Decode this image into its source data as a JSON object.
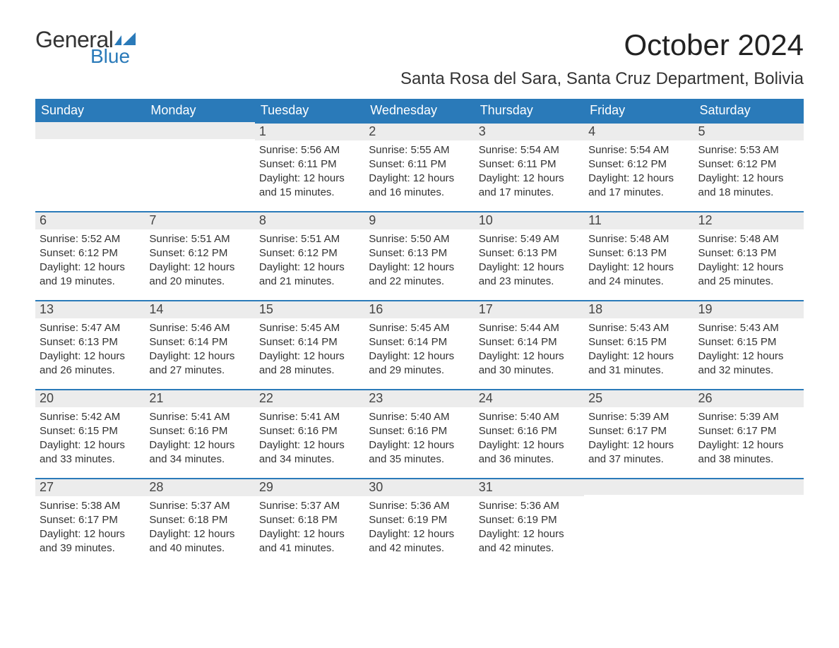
{
  "logo": {
    "text1": "General",
    "text2": "Blue",
    "flag_color": "#2a7ab9"
  },
  "title": "October 2024",
  "subtitle": "Santa Rosa del Sara, Santa Cruz Department, Bolivia",
  "colors": {
    "header_bg": "#2a7ab9",
    "header_text": "#ffffff",
    "daynum_bg": "#ececec",
    "daynum_border": "#2a7ab9",
    "body_text": "#333333",
    "page_bg": "#ffffff"
  },
  "typography": {
    "title_fontsize": 42,
    "subtitle_fontsize": 24,
    "header_fontsize": 18,
    "daynum_fontsize": 18,
    "body_fontsize": 15
  },
  "weekdays": [
    "Sunday",
    "Monday",
    "Tuesday",
    "Wednesday",
    "Thursday",
    "Friday",
    "Saturday"
  ],
  "weeks": [
    [
      {
        "day": "",
        "sunrise": "",
        "sunset": "",
        "daylight1": "",
        "daylight2": ""
      },
      {
        "day": "",
        "sunrise": "",
        "sunset": "",
        "daylight1": "",
        "daylight2": ""
      },
      {
        "day": "1",
        "sunrise": "Sunrise: 5:56 AM",
        "sunset": "Sunset: 6:11 PM",
        "daylight1": "Daylight: 12 hours",
        "daylight2": "and 15 minutes."
      },
      {
        "day": "2",
        "sunrise": "Sunrise: 5:55 AM",
        "sunset": "Sunset: 6:11 PM",
        "daylight1": "Daylight: 12 hours",
        "daylight2": "and 16 minutes."
      },
      {
        "day": "3",
        "sunrise": "Sunrise: 5:54 AM",
        "sunset": "Sunset: 6:11 PM",
        "daylight1": "Daylight: 12 hours",
        "daylight2": "and 17 minutes."
      },
      {
        "day": "4",
        "sunrise": "Sunrise: 5:54 AM",
        "sunset": "Sunset: 6:12 PM",
        "daylight1": "Daylight: 12 hours",
        "daylight2": "and 17 minutes."
      },
      {
        "day": "5",
        "sunrise": "Sunrise: 5:53 AM",
        "sunset": "Sunset: 6:12 PM",
        "daylight1": "Daylight: 12 hours",
        "daylight2": "and 18 minutes."
      }
    ],
    [
      {
        "day": "6",
        "sunrise": "Sunrise: 5:52 AM",
        "sunset": "Sunset: 6:12 PM",
        "daylight1": "Daylight: 12 hours",
        "daylight2": "and 19 minutes."
      },
      {
        "day": "7",
        "sunrise": "Sunrise: 5:51 AM",
        "sunset": "Sunset: 6:12 PM",
        "daylight1": "Daylight: 12 hours",
        "daylight2": "and 20 minutes."
      },
      {
        "day": "8",
        "sunrise": "Sunrise: 5:51 AM",
        "sunset": "Sunset: 6:12 PM",
        "daylight1": "Daylight: 12 hours",
        "daylight2": "and 21 minutes."
      },
      {
        "day": "9",
        "sunrise": "Sunrise: 5:50 AM",
        "sunset": "Sunset: 6:13 PM",
        "daylight1": "Daylight: 12 hours",
        "daylight2": "and 22 minutes."
      },
      {
        "day": "10",
        "sunrise": "Sunrise: 5:49 AM",
        "sunset": "Sunset: 6:13 PM",
        "daylight1": "Daylight: 12 hours",
        "daylight2": "and 23 minutes."
      },
      {
        "day": "11",
        "sunrise": "Sunrise: 5:48 AM",
        "sunset": "Sunset: 6:13 PM",
        "daylight1": "Daylight: 12 hours",
        "daylight2": "and 24 minutes."
      },
      {
        "day": "12",
        "sunrise": "Sunrise: 5:48 AM",
        "sunset": "Sunset: 6:13 PM",
        "daylight1": "Daylight: 12 hours",
        "daylight2": "and 25 minutes."
      }
    ],
    [
      {
        "day": "13",
        "sunrise": "Sunrise: 5:47 AM",
        "sunset": "Sunset: 6:13 PM",
        "daylight1": "Daylight: 12 hours",
        "daylight2": "and 26 minutes."
      },
      {
        "day": "14",
        "sunrise": "Sunrise: 5:46 AM",
        "sunset": "Sunset: 6:14 PM",
        "daylight1": "Daylight: 12 hours",
        "daylight2": "and 27 minutes."
      },
      {
        "day": "15",
        "sunrise": "Sunrise: 5:45 AM",
        "sunset": "Sunset: 6:14 PM",
        "daylight1": "Daylight: 12 hours",
        "daylight2": "and 28 minutes."
      },
      {
        "day": "16",
        "sunrise": "Sunrise: 5:45 AM",
        "sunset": "Sunset: 6:14 PM",
        "daylight1": "Daylight: 12 hours",
        "daylight2": "and 29 minutes."
      },
      {
        "day": "17",
        "sunrise": "Sunrise: 5:44 AM",
        "sunset": "Sunset: 6:14 PM",
        "daylight1": "Daylight: 12 hours",
        "daylight2": "and 30 minutes."
      },
      {
        "day": "18",
        "sunrise": "Sunrise: 5:43 AM",
        "sunset": "Sunset: 6:15 PM",
        "daylight1": "Daylight: 12 hours",
        "daylight2": "and 31 minutes."
      },
      {
        "day": "19",
        "sunrise": "Sunrise: 5:43 AM",
        "sunset": "Sunset: 6:15 PM",
        "daylight1": "Daylight: 12 hours",
        "daylight2": "and 32 minutes."
      }
    ],
    [
      {
        "day": "20",
        "sunrise": "Sunrise: 5:42 AM",
        "sunset": "Sunset: 6:15 PM",
        "daylight1": "Daylight: 12 hours",
        "daylight2": "and 33 minutes."
      },
      {
        "day": "21",
        "sunrise": "Sunrise: 5:41 AM",
        "sunset": "Sunset: 6:16 PM",
        "daylight1": "Daylight: 12 hours",
        "daylight2": "and 34 minutes."
      },
      {
        "day": "22",
        "sunrise": "Sunrise: 5:41 AM",
        "sunset": "Sunset: 6:16 PM",
        "daylight1": "Daylight: 12 hours",
        "daylight2": "and 34 minutes."
      },
      {
        "day": "23",
        "sunrise": "Sunrise: 5:40 AM",
        "sunset": "Sunset: 6:16 PM",
        "daylight1": "Daylight: 12 hours",
        "daylight2": "and 35 minutes."
      },
      {
        "day": "24",
        "sunrise": "Sunrise: 5:40 AM",
        "sunset": "Sunset: 6:16 PM",
        "daylight1": "Daylight: 12 hours",
        "daylight2": "and 36 minutes."
      },
      {
        "day": "25",
        "sunrise": "Sunrise: 5:39 AM",
        "sunset": "Sunset: 6:17 PM",
        "daylight1": "Daylight: 12 hours",
        "daylight2": "and 37 minutes."
      },
      {
        "day": "26",
        "sunrise": "Sunrise: 5:39 AM",
        "sunset": "Sunset: 6:17 PM",
        "daylight1": "Daylight: 12 hours",
        "daylight2": "and 38 minutes."
      }
    ],
    [
      {
        "day": "27",
        "sunrise": "Sunrise: 5:38 AM",
        "sunset": "Sunset: 6:17 PM",
        "daylight1": "Daylight: 12 hours",
        "daylight2": "and 39 minutes."
      },
      {
        "day": "28",
        "sunrise": "Sunrise: 5:37 AM",
        "sunset": "Sunset: 6:18 PM",
        "daylight1": "Daylight: 12 hours",
        "daylight2": "and 40 minutes."
      },
      {
        "day": "29",
        "sunrise": "Sunrise: 5:37 AM",
        "sunset": "Sunset: 6:18 PM",
        "daylight1": "Daylight: 12 hours",
        "daylight2": "and 41 minutes."
      },
      {
        "day": "30",
        "sunrise": "Sunrise: 5:36 AM",
        "sunset": "Sunset: 6:19 PM",
        "daylight1": "Daylight: 12 hours",
        "daylight2": "and 42 minutes."
      },
      {
        "day": "31",
        "sunrise": "Sunrise: 5:36 AM",
        "sunset": "Sunset: 6:19 PM",
        "daylight1": "Daylight: 12 hours",
        "daylight2": "and 42 minutes."
      },
      {
        "day": "",
        "sunrise": "",
        "sunset": "",
        "daylight1": "",
        "daylight2": ""
      },
      {
        "day": "",
        "sunrise": "",
        "sunset": "",
        "daylight1": "",
        "daylight2": ""
      }
    ]
  ]
}
